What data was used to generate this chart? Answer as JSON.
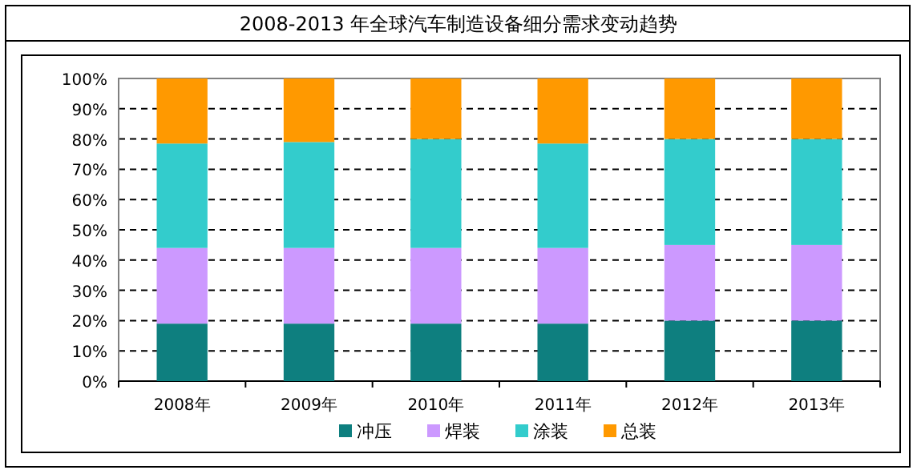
{
  "chart_data": {
    "type": "bar",
    "title": "2008-2013 年全球汽车制造设备细分需求变动趋势",
    "categories": [
      "2008年",
      "2009年",
      "2010年",
      "2011年",
      "2012年",
      "2013年"
    ],
    "stacked": true,
    "series": [
      {
        "name": "冲压",
        "color": "#0e7f7f",
        "values": [
          19,
          19,
          19,
          19,
          20,
          20
        ]
      },
      {
        "name": "焊装",
        "color": "#cc99ff",
        "values": [
          25,
          25,
          25,
          25,
          25,
          25
        ]
      },
      {
        "name": "涂装",
        "color": "#33cccc",
        "values": [
          34.5,
          35,
          36,
          34.5,
          35,
          35
        ]
      },
      {
        "name": "总装",
        "color": "#ff9900",
        "values": [
          21.5,
          21,
          20,
          21.5,
          20,
          20
        ]
      }
    ],
    "ylim": [
      0,
      100
    ],
    "yticks": [
      {
        "value": 0,
        "label": "0%"
      },
      {
        "value": 10,
        "label": "10%"
      },
      {
        "value": 20,
        "label": "20%"
      },
      {
        "value": 30,
        "label": "30%"
      },
      {
        "value": 40,
        "label": "40%"
      },
      {
        "value": 50,
        "label": "50%"
      },
      {
        "value": 60,
        "label": "60%"
      },
      {
        "value": 70,
        "label": "70%"
      },
      {
        "value": 80,
        "label": "80%"
      },
      {
        "value": 90,
        "label": "90%"
      },
      {
        "value": 100,
        "label": "100%"
      }
    ],
    "grid": "y",
    "legend": "bottom"
  }
}
